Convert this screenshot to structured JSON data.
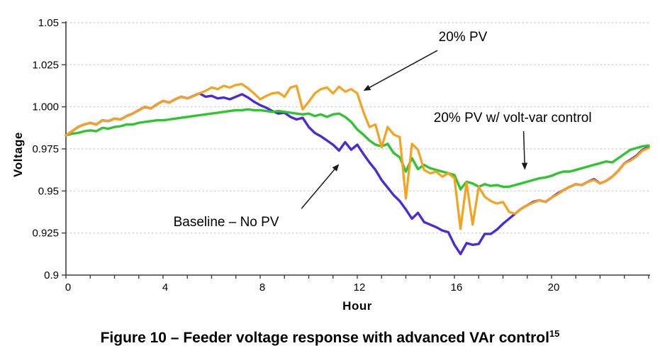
{
  "figure": {
    "caption": {
      "text": "Figure 10 – Feeder voltage response with advanced VAr control",
      "superscript": "15"
    }
  },
  "chart_data": {
    "type": "line",
    "title": "",
    "xlabel": "Hour",
    "ylabel": "Voltage",
    "xlim": [
      0,
      24
    ],
    "ylim": [
      0.9,
      1.05
    ],
    "grid": "horizontal-dashed",
    "legend_position": "none (inline annotations with arrows)",
    "colors": {
      "pv20": "#F7A11E",
      "voltvar": "#2FC52F",
      "baseline": "#4B2BD8",
      "gridline": "#C9C9C9",
      "axis": "#3F3F3F",
      "text": "#000000"
    },
    "yticks": [
      {
        "value": 1.05,
        "label": "1.05"
      },
      {
        "value": 1.025,
        "label": "1.025"
      },
      {
        "value": 1.0,
        "label": "1.000"
      },
      {
        "value": 0.975,
        "label": "0.975"
      },
      {
        "value": 0.95,
        "label": "0.95"
      },
      {
        "value": 0.925,
        "label": "0.925"
      },
      {
        "value": 0.9,
        "label": "0.9"
      }
    ],
    "xticks": {
      "labeled": [
        0,
        4,
        8,
        12,
        16,
        20
      ],
      "minor_every": 1
    },
    "hours": [
      0,
      0.25,
      0.5,
      0.75,
      1,
      1.25,
      1.5,
      1.75,
      2,
      2.25,
      2.5,
      2.75,
      3,
      3.25,
      3.5,
      3.75,
      4,
      4.25,
      4.5,
      4.75,
      5,
      5.25,
      5.5,
      5.75,
      6,
      6.25,
      6.5,
      6.75,
      7,
      7.25,
      7.5,
      7.75,
      8,
      8.25,
      8.5,
      8.75,
      9,
      9.25,
      9.5,
      9.75,
      10,
      10.25,
      10.5,
      10.75,
      11,
      11.25,
      11.5,
      11.75,
      12,
      12.25,
      12.5,
      12.75,
      13,
      13.25,
      13.5,
      13.75,
      14,
      14.25,
      14.5,
      14.75,
      15,
      15.25,
      15.5,
      15.75,
      16,
      16.25,
      16.5,
      16.75,
      17,
      17.25,
      17.5,
      17.75,
      18,
      18.25,
      18.5,
      18.75,
      19,
      19.25,
      19.5,
      19.75,
      20,
      20.25,
      20.5,
      20.75,
      21,
      21.25,
      21.5,
      21.75,
      22,
      22.25,
      22.5,
      22.75,
      23,
      23.25,
      23.5,
      23.75,
      24
    ],
    "series": [
      {
        "name": "Baseline – No PV",
        "color_key": "baseline",
        "stroke_width": 3.4,
        "values": [
          0.983,
          0.9855,
          0.988,
          0.9895,
          0.9905,
          0.9895,
          0.992,
          0.9915,
          0.993,
          0.9925,
          0.9945,
          0.996,
          0.998,
          1.0,
          0.999,
          1.0015,
          1.0035,
          1.0025,
          1.0045,
          1.006,
          1.005,
          1.0065,
          1.008,
          1.006,
          1.0065,
          1.005,
          1.0055,
          1.0045,
          1.006,
          1.0075,
          1.0055,
          1.003,
          1.001,
          0.9995,
          0.9975,
          0.996,
          0.9965,
          0.994,
          0.9925,
          0.9935,
          0.988,
          0.9845,
          0.9825,
          0.98,
          0.9775,
          0.974,
          0.979,
          0.9745,
          0.9775,
          0.972,
          0.967,
          0.9625,
          0.9565,
          0.952,
          0.9475,
          0.944,
          0.939,
          0.9335,
          0.937,
          0.9315,
          0.93,
          0.9285,
          0.9265,
          0.9255,
          0.918,
          0.9125,
          0.919,
          0.918,
          0.9185,
          0.9245,
          0.9245,
          0.927,
          0.9305,
          0.9335,
          0.9365,
          0.9395,
          0.9415,
          0.9435,
          0.9445,
          0.9435,
          0.946,
          0.9485,
          0.9505,
          0.9525,
          0.954,
          0.9535,
          0.9555,
          0.957,
          0.9545,
          0.956,
          0.9585,
          0.962,
          0.9665,
          0.9685,
          0.971,
          0.9745,
          0.976
        ]
      },
      {
        "name": "20% PV w/ volt-var control",
        "color_key": "voltvar",
        "stroke_width": 3.4,
        "values": [
          0.983,
          0.984,
          0.9845,
          0.9855,
          0.986,
          0.9855,
          0.9875,
          0.987,
          0.988,
          0.9885,
          0.9895,
          0.9895,
          0.9905,
          0.991,
          0.9915,
          0.992,
          0.992,
          0.9925,
          0.993,
          0.9935,
          0.994,
          0.9945,
          0.995,
          0.9955,
          0.996,
          0.9965,
          0.997,
          0.9975,
          0.998,
          0.998,
          0.9985,
          0.998,
          0.998,
          0.9975,
          0.997,
          0.9975,
          0.997,
          0.9965,
          0.996,
          0.9955,
          0.996,
          0.9945,
          0.9955,
          0.994,
          0.9955,
          0.996,
          0.994,
          0.991,
          0.9865,
          0.9835,
          0.98,
          0.9775,
          0.9765,
          0.978,
          0.9725,
          0.97,
          0.9615,
          0.9695,
          0.963,
          0.9655,
          0.9635,
          0.9625,
          0.9615,
          0.9605,
          0.9595,
          0.951,
          0.9555,
          0.9545,
          0.9525,
          0.954,
          0.953,
          0.9535,
          0.9525,
          0.9525,
          0.9535,
          0.9545,
          0.9555,
          0.9565,
          0.9575,
          0.958,
          0.959,
          0.9605,
          0.9615,
          0.9615,
          0.9625,
          0.9635,
          0.9645,
          0.9655,
          0.9665,
          0.9675,
          0.967,
          0.9695,
          0.972,
          0.9745,
          0.9755,
          0.9765,
          0.977
        ]
      },
      {
        "name": "20% PV",
        "color_key": "pv20",
        "stroke_width": 3.2,
        "values": [
          0.983,
          0.9855,
          0.988,
          0.9895,
          0.9905,
          0.9895,
          0.992,
          0.9915,
          0.993,
          0.9925,
          0.9945,
          0.996,
          0.998,
          1.0,
          0.999,
          1.0015,
          1.0035,
          1.0025,
          1.0045,
          1.006,
          1.005,
          1.0065,
          1.008,
          1.0095,
          1.0115,
          1.0105,
          1.0125,
          1.0115,
          1.013,
          1.0135,
          1.011,
          1.008,
          1.0045,
          1.0065,
          1.008,
          1.0085,
          1.006,
          1.0115,
          1.0125,
          0.9985,
          1.003,
          1.008,
          1.0105,
          1.0115,
          1.008,
          1.012,
          1.009,
          1.0105,
          1.008,
          0.997,
          0.988,
          0.9895,
          0.976,
          0.988,
          0.9835,
          0.982,
          0.9455,
          0.978,
          0.9745,
          0.9625,
          0.9605,
          0.9615,
          0.9585,
          0.9605,
          0.9575,
          0.9275,
          0.955,
          0.93,
          0.9525,
          0.9465,
          0.944,
          0.9425,
          0.9435,
          0.9375,
          0.9365,
          0.9395,
          0.9415,
          0.943,
          0.9445,
          0.9435,
          0.946,
          0.948,
          0.9505,
          0.9525,
          0.954,
          0.9535,
          0.9555,
          0.9565,
          0.9545,
          0.956,
          0.9585,
          0.962,
          0.9665,
          0.968,
          0.9705,
          0.974,
          0.9755
        ]
      }
    ],
    "annotations": [
      {
        "label": "20% PV",
        "text_x": 16.35,
        "text_y": 1.0415,
        "arrow": {
          "from_x": 15.3,
          "from_y": 1.0335,
          "to_x": 12.25,
          "to_y": 1.0095
        }
      },
      {
        "label": "20% PV w/ volt-var control",
        "text_x": 18.4,
        "text_y": 0.9935,
        "arrow": {
          "from_x": 18.85,
          "from_y": 0.9855,
          "to_x": 18.9,
          "to_y": 0.9625
        }
      },
      {
        "label": "Baseline – No PV",
        "text_x": 6.6,
        "text_y": 0.9315,
        "arrow": {
          "from_x": 9.7,
          "from_y": 0.9395,
          "to_x": 11.25,
          "to_y": 0.966
        }
      }
    ]
  }
}
